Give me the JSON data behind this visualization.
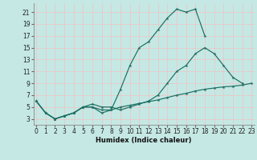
{
  "xlabel": "Humidex (Indice chaleur)",
  "background_color": "#c5e8e4",
  "grid_color": "#e8c8c8",
  "line_color": "#1a6e62",
  "xlim": [
    -0.3,
    23.3
  ],
  "ylim": [
    2.0,
    22.5
  ],
  "xticks": [
    0,
    1,
    2,
    3,
    4,
    5,
    6,
    7,
    8,
    9,
    10,
    11,
    12,
    13,
    14,
    15,
    16,
    17,
    18,
    19,
    20,
    21,
    22,
    23
  ],
  "yticks": [
    3,
    5,
    7,
    9,
    11,
    13,
    15,
    17,
    19,
    21
  ],
  "line1": {
    "x": [
      0,
      1,
      2,
      3,
      4,
      5,
      6,
      7,
      8,
      9,
      10,
      11,
      12,
      13,
      14,
      15,
      16,
      17,
      18
    ],
    "y": [
      6,
      4,
      3,
      3.5,
      4,
      5,
      5,
      4,
      4.5,
      8,
      12,
      15,
      16,
      18,
      20,
      21.5,
      21,
      21.5,
      17
    ]
  },
  "line2": {
    "x": [
      0,
      1,
      2,
      3,
      4,
      5,
      6,
      7,
      8,
      9,
      10,
      11,
      12,
      13,
      14,
      15,
      16,
      17,
      18,
      19,
      20,
      21,
      22
    ],
    "y": [
      6,
      4,
      3,
      3.5,
      4,
      5,
      5.5,
      5,
      5,
      4.5,
      5,
      5.5,
      6,
      7,
      9,
      11,
      12,
      14,
      15,
      14,
      12,
      10,
      9
    ]
  },
  "line3": {
    "x": [
      0,
      1,
      2,
      3,
      4,
      5,
      6,
      7,
      8,
      9,
      10,
      11,
      12,
      13,
      14,
      15,
      16,
      17,
      18,
      19,
      20,
      21,
      22,
      23
    ],
    "y": [
      6,
      4,
      3,
      3.5,
      4,
      5,
      5,
      4.5,
      4.5,
      5,
      5.3,
      5.6,
      5.9,
      6.2,
      6.6,
      7.0,
      7.3,
      7.7,
      8.0,
      8.2,
      8.4,
      8.5,
      8.7,
      9.0
    ]
  }
}
